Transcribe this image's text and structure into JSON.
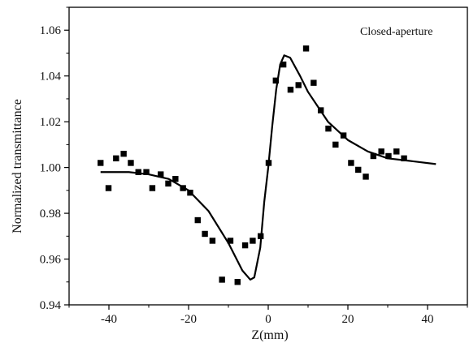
{
  "chart_data": {
    "type": "scatter",
    "title": "",
    "annotation": "Closed-aperture",
    "xlabel": "Z(mm)",
    "ylabel": "Normalized transmittance",
    "xlim": [
      -50,
      50
    ],
    "ylim": [
      0.94,
      1.07
    ],
    "x_ticks": [
      -40,
      -20,
      0,
      20,
      40
    ],
    "x_tick_labels": [
      "-40",
      "-20",
      "0",
      "20",
      "40"
    ],
    "y_ticks": [
      0.94,
      0.96,
      0.98,
      1.0,
      1.02,
      1.04,
      1.06
    ],
    "y_tick_labels": [
      "0.94",
      "0.96",
      "0.98",
      "1.00",
      "1.02",
      "1.04",
      "1.06"
    ],
    "grid": false,
    "legend": "none",
    "colors": {
      "points": "#000000",
      "fit_line": "#000000",
      "axes": "#000000"
    },
    "series": [
      {
        "kind": "scatter",
        "marker": "square",
        "points": [
          {
            "x": -42.1,
            "y": 1.002
          },
          {
            "x": -40.1,
            "y": 0.991
          },
          {
            "x": -38.2,
            "y": 1.004
          },
          {
            "x": -36.3,
            "y": 1.006
          },
          {
            "x": -34.5,
            "y": 1.002
          },
          {
            "x": -32.6,
            "y": 0.998
          },
          {
            "x": -30.6,
            "y": 0.998
          },
          {
            "x": -29.1,
            "y": 0.991
          },
          {
            "x": -27.0,
            "y": 0.997
          },
          {
            "x": -25.1,
            "y": 0.993
          },
          {
            "x": -23.3,
            "y": 0.995
          },
          {
            "x": -21.4,
            "y": 0.991
          },
          {
            "x": -19.6,
            "y": 0.989
          },
          {
            "x": -17.7,
            "y": 0.977
          },
          {
            "x": -15.9,
            "y": 0.971
          },
          {
            "x": -14.0,
            "y": 0.968
          },
          {
            "x": -11.6,
            "y": 0.951
          },
          {
            "x": -9.5,
            "y": 0.968
          },
          {
            "x": -7.7,
            "y": 0.95
          },
          {
            "x": -5.8,
            "y": 0.966
          },
          {
            "x": -3.9,
            "y": 0.968
          },
          {
            "x": -1.9,
            "y": 0.97
          },
          {
            "x": 0.1,
            "y": 1.002
          },
          {
            "x": 1.9,
            "y": 1.038
          },
          {
            "x": 3.8,
            "y": 1.045
          },
          {
            "x": 5.6,
            "y": 1.034
          },
          {
            "x": 7.6,
            "y": 1.036
          },
          {
            "x": 9.5,
            "y": 1.052
          },
          {
            "x": 11.4,
            "y": 1.037
          },
          {
            "x": 13.2,
            "y": 1.025
          },
          {
            "x": 15.1,
            "y": 1.017
          },
          {
            "x": 16.9,
            "y": 1.01
          },
          {
            "x": 18.9,
            "y": 1.014
          },
          {
            "x": 20.8,
            "y": 1.002
          },
          {
            "x": 22.6,
            "y": 0.999
          },
          {
            "x": 24.5,
            "y": 0.996
          },
          {
            "x": 26.4,
            "y": 1.005
          },
          {
            "x": 28.4,
            "y": 1.007
          },
          {
            "x": 30.2,
            "y": 1.005
          },
          {
            "x": 32.2,
            "y": 1.007
          },
          {
            "x": 34.1,
            "y": 1.004
          }
        ]
      },
      {
        "kind": "line",
        "points": [
          {
            "x": -42.1,
            "y": 0.998
          },
          {
            "x": -35,
            "y": 0.998
          },
          {
            "x": -30,
            "y": 0.997
          },
          {
            "x": -25,
            "y": 0.995
          },
          {
            "x": -20,
            "y": 0.99
          },
          {
            "x": -15,
            "y": 0.981
          },
          {
            "x": -10,
            "y": 0.967
          },
          {
            "x": -6.5,
            "y": 0.955
          },
          {
            "x": -4.5,
            "y": 0.951
          },
          {
            "x": -3.5,
            "y": 0.952
          },
          {
            "x": -2,
            "y": 0.965
          },
          {
            "x": -1,
            "y": 0.985
          },
          {
            "x": 0,
            "y": 1.0
          },
          {
            "x": 1,
            "y": 1.018
          },
          {
            "x": 2,
            "y": 1.034
          },
          {
            "x": 3,
            "y": 1.045
          },
          {
            "x": 4,
            "y": 1.049
          },
          {
            "x": 5.5,
            "y": 1.048
          },
          {
            "x": 8,
            "y": 1.04
          },
          {
            "x": 10,
            "y": 1.033
          },
          {
            "x": 15,
            "y": 1.02
          },
          {
            "x": 20,
            "y": 1.012
          },
          {
            "x": 25,
            "y": 1.007
          },
          {
            "x": 30,
            "y": 1.004
          },
          {
            "x": 35,
            "y": 1.003
          },
          {
            "x": 42.1,
            "y": 1.0015
          }
        ]
      }
    ]
  }
}
